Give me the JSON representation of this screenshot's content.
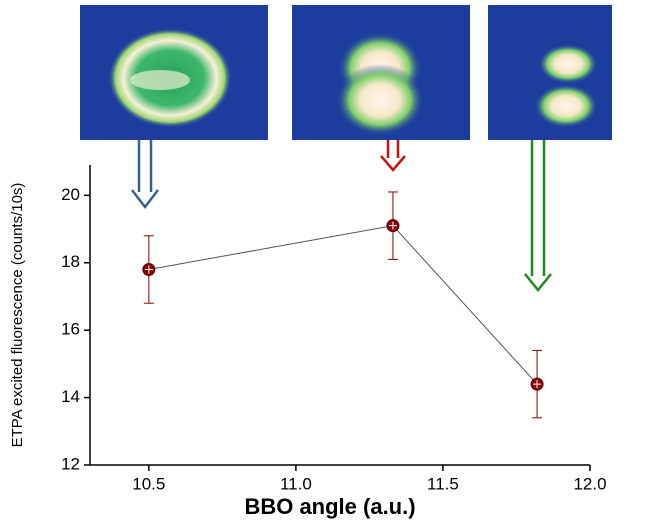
{
  "chart_data": {
    "type": "line",
    "xlabel": "BBO angle (a.u.)",
    "ylabel": "ETPA excited fluorescence (counts/10s)",
    "x": [
      10.5,
      11.33,
      11.82
    ],
    "values": [
      17.8,
      19.1,
      14.4
    ],
    "errors": [
      1.0,
      1.0,
      1.0
    ],
    "color": "#8b0000",
    "line_color": "#555555",
    "xlim": [
      10.3,
      12.0
    ],
    "ylim": [
      12,
      20.9
    ],
    "xticks": [
      10.5,
      {
        "value": 11.0,
        "label": "11.0"
      },
      11.5,
      {
        "value": 12.0,
        "label": "12.0"
      }
    ],
    "yticks": [
      12,
      14,
      16,
      18,
      20
    ]
  }
}
